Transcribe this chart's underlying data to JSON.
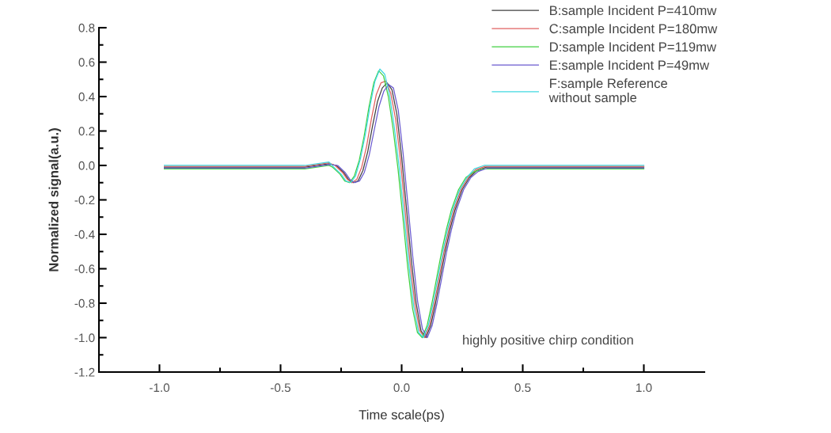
{
  "chart_data": {
    "type": "line",
    "xlabel": "Time scale(ps)",
    "ylabel": "Normalized signal(a.u.)",
    "x": [
      -0.98,
      -0.9,
      -0.8,
      -0.7,
      -0.6,
      -0.5,
      -0.4,
      -0.35,
      -0.3,
      -0.27,
      -0.24,
      -0.22,
      -0.2,
      -0.18,
      -0.16,
      -0.14,
      -0.12,
      -0.1,
      -0.08,
      -0.06,
      -0.04,
      -0.02,
      0,
      0.02,
      0.04,
      0.06,
      0.08,
      0.1,
      0.12,
      0.14,
      0.16,
      0.18,
      0.2,
      0.22,
      0.25,
      0.28,
      0.31,
      0.35,
      0.4,
      0.5,
      0.6,
      0.7,
      0.8,
      0.9,
      1.0
    ],
    "series": [
      {
        "name": "B:sample Incident P=410mw",
        "color": "#404040",
        "values": [
          -0.01,
          -0.01,
          -0.01,
          -0.01,
          -0.01,
          -0.01,
          -0.01,
          0,
          0.01,
          0,
          -0.04,
          -0.08,
          -0.1,
          -0.09,
          -0.03,
          0.08,
          0.23,
          0.37,
          0.45,
          0.48,
          0.44,
          0.3,
          0.05,
          -0.25,
          -0.55,
          -0.8,
          -0.96,
          -1.0,
          -0.93,
          -0.8,
          -0.65,
          -0.5,
          -0.37,
          -0.26,
          -0.14,
          -0.07,
          -0.03,
          -0.01,
          -0.01,
          -0.01,
          -0.01,
          -0.01,
          -0.01,
          -0.01,
          -0.01
        ]
      },
      {
        "name": "C:sample Incident P=180mw",
        "color": "#e06060",
        "x": [
          -0.98,
          -0.9,
          -0.8,
          -0.7,
          -0.6,
          -0.5,
          -0.4,
          -0.35,
          -0.3,
          -0.275,
          -0.245,
          -0.225,
          -0.205,
          -0.185,
          -0.165,
          -0.145,
          -0.125,
          -0.105,
          -0.085,
          -0.065,
          -0.045,
          -0.025,
          -0.005,
          0.015,
          0.035,
          0.055,
          0.075,
          0.095,
          0.115,
          0.135,
          0.155,
          0.175,
          0.195,
          0.215,
          0.245,
          0.275,
          0.305,
          0.345,
          0.395,
          0.5,
          0.6,
          0.7,
          0.8,
          0.9,
          1.0
        ],
        "values": [
          -0.005,
          -0.005,
          -0.005,
          -0.005,
          -0.005,
          -0.005,
          -0.005,
          0.005,
          0.015,
          0,
          -0.04,
          -0.08,
          -0.1,
          -0.08,
          -0.01,
          0.11,
          0.27,
          0.41,
          0.48,
          0.49,
          0.42,
          0.27,
          0.03,
          -0.27,
          -0.57,
          -0.81,
          -0.96,
          -1.0,
          -0.93,
          -0.8,
          -0.65,
          -0.5,
          -0.37,
          -0.26,
          -0.14,
          -0.07,
          -0.025,
          -0.005,
          -0.005,
          -0.005,
          -0.005,
          -0.005,
          -0.005,
          -0.005,
          -0.005
        ]
      },
      {
        "name": "D:sample Incident P=119mw",
        "color": "#40d040",
        "x": [
          -0.98,
          -0.9,
          -0.8,
          -0.7,
          -0.6,
          -0.5,
          -0.4,
          -0.35,
          -0.3,
          -0.285,
          -0.255,
          -0.235,
          -0.215,
          -0.195,
          -0.175,
          -0.155,
          -0.135,
          -0.115,
          -0.095,
          -0.075,
          -0.055,
          -0.035,
          -0.015,
          0.005,
          0.025,
          0.045,
          0.065,
          0.085,
          0.105,
          0.125,
          0.145,
          0.165,
          0.185,
          0.205,
          0.235,
          0.265,
          0.295,
          0.335,
          0.385,
          0.5,
          0.6,
          0.7,
          0.8,
          0.9,
          1.0
        ],
        "values": [
          -0.02,
          -0.02,
          -0.02,
          -0.02,
          -0.02,
          -0.02,
          -0.02,
          -0.01,
          0,
          -0.01,
          -0.05,
          -0.09,
          -0.1,
          -0.06,
          0.03,
          0.17,
          0.34,
          0.48,
          0.55,
          0.52,
          0.4,
          0.21,
          -0.02,
          -0.3,
          -0.59,
          -0.83,
          -0.97,
          -1.0,
          -0.93,
          -0.8,
          -0.65,
          -0.5,
          -0.37,
          -0.26,
          -0.14,
          -0.07,
          -0.04,
          -0.02,
          -0.02,
          -0.02,
          -0.02,
          -0.02,
          -0.02,
          -0.02,
          -0.02
        ]
      },
      {
        "name": "E:sample Incident P=49mw",
        "color": "#6a5ad0",
        "x": [
          -0.98,
          -0.9,
          -0.8,
          -0.7,
          -0.6,
          -0.5,
          -0.4,
          -0.35,
          -0.3,
          -0.264,
          -0.234,
          -0.214,
          -0.194,
          -0.174,
          -0.154,
          -0.134,
          -0.114,
          -0.094,
          -0.074,
          -0.054,
          -0.034,
          -0.014,
          0.006,
          0.026,
          0.046,
          0.066,
          0.086,
          0.106,
          0.126,
          0.146,
          0.166,
          0.186,
          0.206,
          0.226,
          0.256,
          0.286,
          0.316,
          0.356,
          0.406,
          0.5,
          0.6,
          0.7,
          0.8,
          0.9,
          1.0
        ],
        "values": [
          -0.015,
          -0.015,
          -0.015,
          -0.015,
          -0.015,
          -0.015,
          -0.015,
          -0.005,
          0.005,
          0,
          -0.04,
          -0.08,
          -0.1,
          -0.09,
          -0.04,
          0.06,
          0.2,
          0.34,
          0.43,
          0.47,
          0.45,
          0.32,
          0.07,
          -0.23,
          -0.53,
          -0.79,
          -0.95,
          -1.0,
          -0.93,
          -0.8,
          -0.65,
          -0.5,
          -0.37,
          -0.26,
          -0.14,
          -0.07,
          -0.035,
          -0.015,
          -0.015,
          -0.015,
          -0.015,
          -0.015,
          -0.015,
          -0.015,
          -0.015
        ]
      },
      {
        "name": "F:sample Reference\nwithout sample",
        "color": "#40d8e0",
        "x": [
          -0.98,
          -0.9,
          -0.8,
          -0.7,
          -0.6,
          -0.5,
          -0.4,
          -0.35,
          -0.3,
          -0.28,
          -0.25,
          -0.23,
          -0.21,
          -0.19,
          -0.17,
          -0.15,
          -0.13,
          -0.11,
          -0.09,
          -0.07,
          -0.05,
          -0.03,
          -0.01,
          0.01,
          0.03,
          0.05,
          0.07,
          0.09,
          0.11,
          0.13,
          0.15,
          0.17,
          0.19,
          0.21,
          0.24,
          0.27,
          0.3,
          0.34,
          0.39,
          0.5,
          0.6,
          0.7,
          0.8,
          0.9,
          1.0
        ],
        "values": [
          0,
          0,
          0,
          0,
          0,
          0,
          0,
          0.01,
          0.02,
          -0.01,
          -0.05,
          -0.09,
          -0.1,
          -0.06,
          0.04,
          0.18,
          0.35,
          0.49,
          0.56,
          0.53,
          0.41,
          0.22,
          -0.01,
          -0.29,
          -0.58,
          -0.82,
          -0.97,
          -1.0,
          -0.93,
          -0.8,
          -0.65,
          -0.5,
          -0.37,
          -0.26,
          -0.14,
          -0.07,
          -0.02,
          0,
          0,
          0,
          0,
          0,
          0,
          0,
          0
        ]
      }
    ],
    "xlim": [
      -1.25,
      1.25
    ],
    "xticks": [
      {
        "value": -1.0,
        "label": "-1.0"
      },
      -0.5,
      {
        "value": 0.0,
        "label": "0.0"
      },
      0.5,
      {
        "value": 1.0,
        "label": "1.0"
      }
    ],
    "ylim": [
      -1.2,
      0.8
    ],
    "yticks": [
      -1.2,
      {
        "value": -1.0,
        "label": "-1.0"
      },
      -0.8,
      -0.6,
      -0.4,
      -0.2,
      {
        "value": 0.0,
        "label": "0.0"
      },
      0.2,
      0.4,
      0.6,
      0.8
    ],
    "annotations": [
      "highly positive chirp condition"
    ],
    "legend": "top right",
    "grid": false,
    "line_style": "solid",
    "marker": "none"
  }
}
